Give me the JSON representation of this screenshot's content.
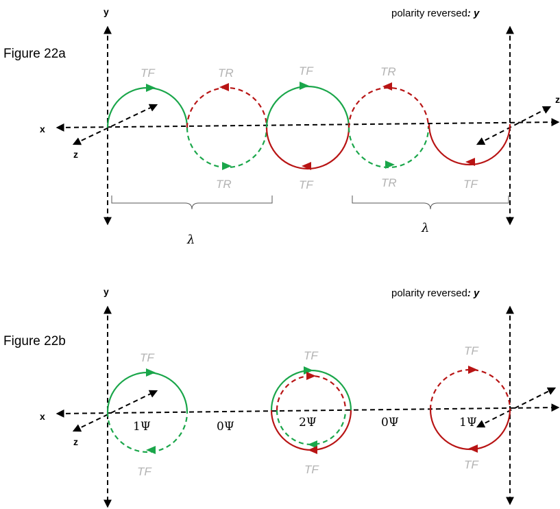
{
  "figure_a": {
    "title": "Figure 22a",
    "axis_y": "y",
    "axis_x": "x",
    "axis_z": "z",
    "reversed_prefix": "polarity reversed",
    "reversed_suffix": ": y",
    "lambda_left": "λ",
    "lambda_right": "λ",
    "tags": [
      "TF",
      "TR",
      "TF",
      "TR",
      "TR",
      "TF",
      "TR",
      "TF"
    ]
  },
  "figure_b": {
    "title": "Figure 22b",
    "axis_y": "y",
    "axis_x": "x",
    "axis_z": "z",
    "reversed_prefix": "polarity reversed",
    "reversed_suffix": ": y",
    "psi_labels": [
      "1Ψ",
      "0Ψ",
      "2Ψ",
      "0Ψ",
      "1Ψ"
    ],
    "tags": [
      "TF",
      "TF",
      "TF",
      "TF",
      "TF",
      "TF"
    ]
  },
  "colors": {
    "green": "#1aa64a",
    "red": "#b81414",
    "tag_grey": "#b3b3b3"
  }
}
